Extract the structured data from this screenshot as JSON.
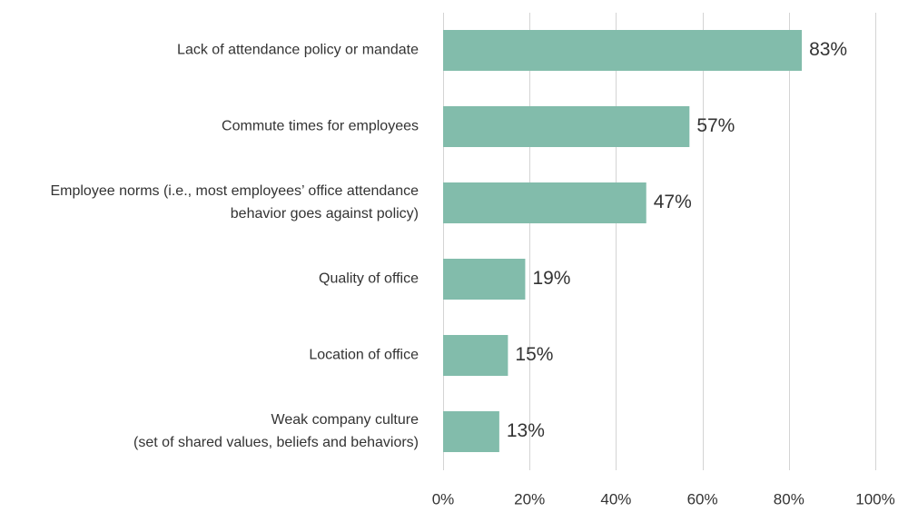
{
  "chart_data": {
    "type": "bar",
    "orientation": "horizontal",
    "categories": [
      [
        "Lack of attendance policy or mandate"
      ],
      [
        "Commute times for employees"
      ],
      [
        "Employee norms (i.e., most employees’ office attendance",
        "behavior goes against policy)"
      ],
      [
        "Quality of office"
      ],
      [
        "Location of office"
      ],
      [
        "Weak company culture",
        "(set of shared values, beliefs and behaviors)"
      ]
    ],
    "values": [
      83,
      57,
      47,
      19,
      15,
      13
    ],
    "value_labels": [
      "83%",
      "57%",
      "47%",
      "19%",
      "15%",
      "13%"
    ],
    "xlim": [
      0,
      100
    ],
    "x_ticks": [
      0,
      20,
      40,
      60,
      80,
      100
    ],
    "x_tick_labels": [
      "0%",
      "20%",
      "40%",
      "60%",
      "80%",
      "100%"
    ],
    "grid": true,
    "bar_color": "#82bcab",
    "title": "",
    "xlabel": "",
    "ylabel": ""
  }
}
